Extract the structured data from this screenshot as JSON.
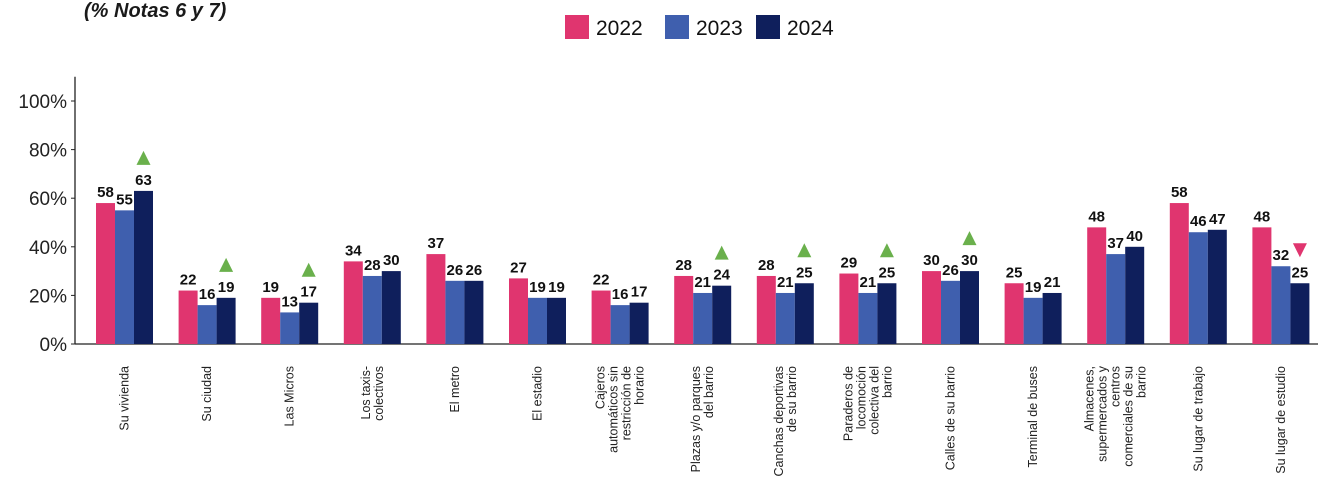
{
  "header": {
    "subtitle": "(% Notas 6 y 7)"
  },
  "chart_data": {
    "type": "bar",
    "y_format": "percent",
    "ylim": [
      0,
      110
    ],
    "yticks": [
      0,
      20,
      40,
      60,
      80,
      100
    ],
    "ytick_labels": [
      "0%",
      "20%",
      "40%",
      "60%",
      "80%",
      "100%"
    ],
    "grid": false,
    "legend_position": "top-center",
    "categories": [
      [
        "Su vivienda"
      ],
      [
        "Su ciudad"
      ],
      [
        "Las Micros"
      ],
      [
        "Los taxis-",
        "colectivos"
      ],
      [
        "El metro"
      ],
      [
        "El estadio"
      ],
      [
        "Cajeros",
        "automáticos sin",
        "restricción de",
        "horario"
      ],
      [
        "Plazas y/o parques",
        "del barrio"
      ],
      [
        "Canchas deportivas",
        "de su barrio"
      ],
      [
        "Paraderos de",
        "locomoción",
        "colectiva del",
        "barrio"
      ],
      [
        "Calles de su barrio"
      ],
      [
        "Terminal de buses"
      ],
      [
        "Almacenes,",
        "supermercados y",
        "centros",
        "comerciales de su",
        "barrio"
      ],
      [
        "Su lugar de trabajo"
      ],
      [
        "Su lugar de estudio"
      ]
    ],
    "series": [
      {
        "name": "2022",
        "color": "#e0356f",
        "values": [
          58,
          22,
          19,
          34,
          37,
          27,
          22,
          28,
          28,
          29,
          30,
          25,
          48,
          58,
          48
        ]
      },
      {
        "name": "2023",
        "color": "#3f5fae",
        "values": [
          55,
          16,
          13,
          28,
          26,
          19,
          16,
          21,
          21,
          21,
          26,
          19,
          37,
          46,
          32
        ]
      },
      {
        "name": "2024",
        "color": "#0f1f5c",
        "values": [
          63,
          19,
          17,
          30,
          26,
          19,
          17,
          24,
          25,
          25,
          30,
          21,
          40,
          47,
          25
        ]
      }
    ],
    "trend_markers": [
      "up",
      "up",
      "up",
      "",
      "",
      "",
      "",
      "up",
      "up",
      "up",
      "up",
      "",
      "",
      "",
      "down"
    ],
    "marker_colors": {
      "up": "#6ab04c",
      "down": "#e0356f"
    }
  }
}
